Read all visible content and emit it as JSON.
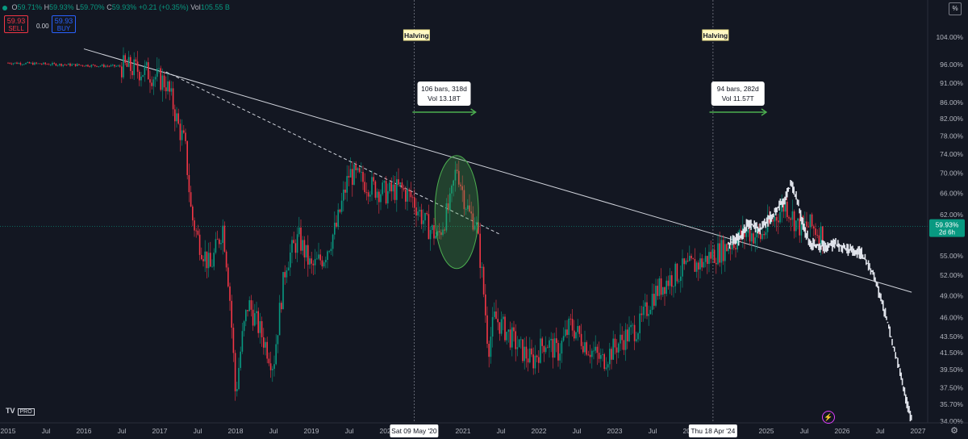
{
  "ohlc": {
    "open_label": "O",
    "open": "59.71%",
    "high_label": "H",
    "high": "59.93%",
    "low_label": "L",
    "low": "59.70%",
    "close_label": "C",
    "close": "59.93%",
    "change": "+0.21 (+0.35%)",
    "vol_label": "Vol",
    "vol": "105.55 B"
  },
  "trade": {
    "sell_price": "59.93",
    "sell_label": "SELL",
    "spread": "0.00",
    "buy_price": "59.93",
    "buy_label": "BUY"
  },
  "scale_button": "%",
  "logo_text": "TV",
  "logo_badge": "PRO",
  "colors": {
    "up": "#089981",
    "down": "#f23645",
    "background": "#131722",
    "projection": "#e0e3eb",
    "highlight": "#4caf50"
  },
  "chart_data": {
    "type": "candlestick",
    "title": "",
    "y_scale": "log",
    "y_ticks": [
      "104.00%",
      "96.00%",
      "91.00%",
      "86.00%",
      "82.00%",
      "78.00%",
      "74.00%",
      "70.00%",
      "66.00%",
      "62.00%",
      "59.93%",
      "55.00%",
      "52.00%",
      "49.00%",
      "46.00%",
      "43.50%",
      "41.50%",
      "39.50%",
      "37.50%",
      "35.70%",
      "34.00%"
    ],
    "last_price_label": "59.93%",
    "last_price_countdown": "2d 6h",
    "x_ticks": [
      "2015",
      "Jul",
      "2016",
      "Jul",
      "2017",
      "Jul",
      "2018",
      "Jul",
      "2019",
      "Jul",
      "2020",
      "Jul",
      "2021",
      "Jul",
      "2022",
      "Jul",
      "2023",
      "Jul",
      "2024",
      "Jul",
      "2025",
      "Jul",
      "2026",
      "Jul",
      "2027"
    ],
    "x_range": [
      "2015-01",
      "2027-01"
    ],
    "cursor_dates": [
      "Sat 09 May '20",
      "Thu 18 Apr '24"
    ],
    "events": [
      {
        "label": "Halving",
        "date": "2020-05-09"
      },
      {
        "label": "Halving",
        "date": "2024-04-18"
      }
    ],
    "measures": [
      {
        "bars_label": "106 bars, 318d",
        "vol_label": "Vol 13.18T",
        "start": "2020-05",
        "end": "2021-03"
      },
      {
        "bars_label": "94 bars, 282d",
        "vol_label": "Vol 11.57T",
        "start": "2024-04",
        "end": "2025-01"
      }
    ],
    "price_path": [
      {
        "t": "2015-01",
        "v": 96.5
      },
      {
        "t": "2016-07",
        "v": 95.5
      },
      {
        "t": "2016-11",
        "v": 94.0
      },
      {
        "t": "2017-02",
        "v": 91.0
      },
      {
        "t": "2017-03",
        "v": 86.0
      },
      {
        "t": "2017-04",
        "v": 80.0
      },
      {
        "t": "2017-05",
        "v": 76.0
      },
      {
        "t": "2017-06",
        "v": 62.0
      },
      {
        "t": "2017-07",
        "v": 58.0
      },
      {
        "t": "2017-09",
        "v": 53.0
      },
      {
        "t": "2017-11",
        "v": 60.0
      },
      {
        "t": "2017-12",
        "v": 50.0
      },
      {
        "t": "2018-01",
        "v": 36.5
      },
      {
        "t": "2018-02",
        "v": 43.0
      },
      {
        "t": "2018-03",
        "v": 48.0
      },
      {
        "t": "2018-05",
        "v": 44.0
      },
      {
        "t": "2018-07",
        "v": 40.0
      },
      {
        "t": "2018-09",
        "v": 54.0
      },
      {
        "t": "2018-11",
        "v": 58.0
      },
      {
        "t": "2019-01",
        "v": 53.0
      },
      {
        "t": "2019-03",
        "v": 55.0
      },
      {
        "t": "2019-05",
        "v": 60.0
      },
      {
        "t": "2019-07",
        "v": 70.0
      },
      {
        "t": "2019-09",
        "v": 68.5
      },
      {
        "t": "2019-11",
        "v": 67.0
      },
      {
        "t": "2020-01",
        "v": 66.0
      },
      {
        "t": "2020-03",
        "v": 67.0
      },
      {
        "t": "2020-05",
        "v": 65.0
      },
      {
        "t": "2020-07",
        "v": 60.5
      },
      {
        "t": "2020-09",
        "v": 58.0
      },
      {
        "t": "2020-11",
        "v": 64.0
      },
      {
        "t": "2020-12",
        "v": 71.5
      },
      {
        "t": "2021-01",
        "v": 66.0
      },
      {
        "t": "2021-02",
        "v": 62.0
      },
      {
        "t": "2021-03",
        "v": 61.0
      },
      {
        "t": "2021-04",
        "v": 52.0
      },
      {
        "t": "2021-05",
        "v": 42.0
      },
      {
        "t": "2021-06",
        "v": 46.0
      },
      {
        "t": "2021-08",
        "v": 44.0
      },
      {
        "t": "2021-10",
        "v": 42.0
      },
      {
        "t": "2021-12",
        "v": 40.5
      },
      {
        "t": "2022-02",
        "v": 43.0
      },
      {
        "t": "2022-04",
        "v": 41.5
      },
      {
        "t": "2022-06",
        "v": 45.0
      },
      {
        "t": "2022-09",
        "v": 42.0
      },
      {
        "t": "2022-11",
        "v": 40.5
      },
      {
        "t": "2023-02",
        "v": 43.0
      },
      {
        "t": "2023-05",
        "v": 45.0
      },
      {
        "t": "2023-07",
        "v": 49.0
      },
      {
        "t": "2023-09",
        "v": 51.0
      },
      {
        "t": "2023-12",
        "v": 53.0
      },
      {
        "t": "2024-03",
        "v": 54.0
      },
      {
        "t": "2024-04",
        "v": 55.0
      },
      {
        "t": "2024-06",
        "v": 56.0
      },
      {
        "t": "2024-08",
        "v": 57.5
      },
      {
        "t": "2024-10",
        "v": 59.0
      },
      {
        "t": "2024-12",
        "v": 58.0
      },
      {
        "t": "2025-02",
        "v": 61.0
      },
      {
        "t": "2025-04",
        "v": 64.0
      },
      {
        "t": "2025-06",
        "v": 60.0
      },
      {
        "t": "2025-08",
        "v": 60.0
      },
      {
        "t": "2025-10",
        "v": 58.5
      }
    ],
    "projection_path": [
      {
        "t": "2024-07",
        "v": 57.0
      },
      {
        "t": "2024-09",
        "v": 58.0
      },
      {
        "t": "2024-10",
        "v": 60.5
      },
      {
        "t": "2024-12",
        "v": 59.5
      },
      {
        "t": "2025-02",
        "v": 62.0
      },
      {
        "t": "2025-04",
        "v": 65.0
      },
      {
        "t": "2025-05",
        "v": 68.0
      },
      {
        "t": "2025-06",
        "v": 64.0
      },
      {
        "t": "2025-07",
        "v": 59.5
      },
      {
        "t": "2025-08",
        "v": 57.0
      },
      {
        "t": "2025-10",
        "v": 56.5
      },
      {
        "t": "2025-12",
        "v": 57.0
      },
      {
        "t": "2026-02",
        "v": 56.0
      },
      {
        "t": "2026-04",
        "v": 55.5
      },
      {
        "t": "2026-06",
        "v": 52.0
      },
      {
        "t": "2026-08",
        "v": 46.0
      },
      {
        "t": "2026-09",
        "v": 42.5
      },
      {
        "t": "2026-10",
        "v": 40.0
      },
      {
        "t": "2026-11",
        "v": 36.5
      },
      {
        "t": "2026-12",
        "v": 34.0
      }
    ],
    "trendlines": [
      {
        "style": "solid",
        "from": {
          "t": "2016-01",
          "v": 100.5
        },
        "to": {
          "t": "2026-12",
          "v": 49.5
        }
      },
      {
        "style": "dashed",
        "from": {
          "t": "2017-02",
          "v": 94.0
        },
        "to": {
          "t": "2021-07",
          "v": 58.5
        }
      }
    ]
  }
}
